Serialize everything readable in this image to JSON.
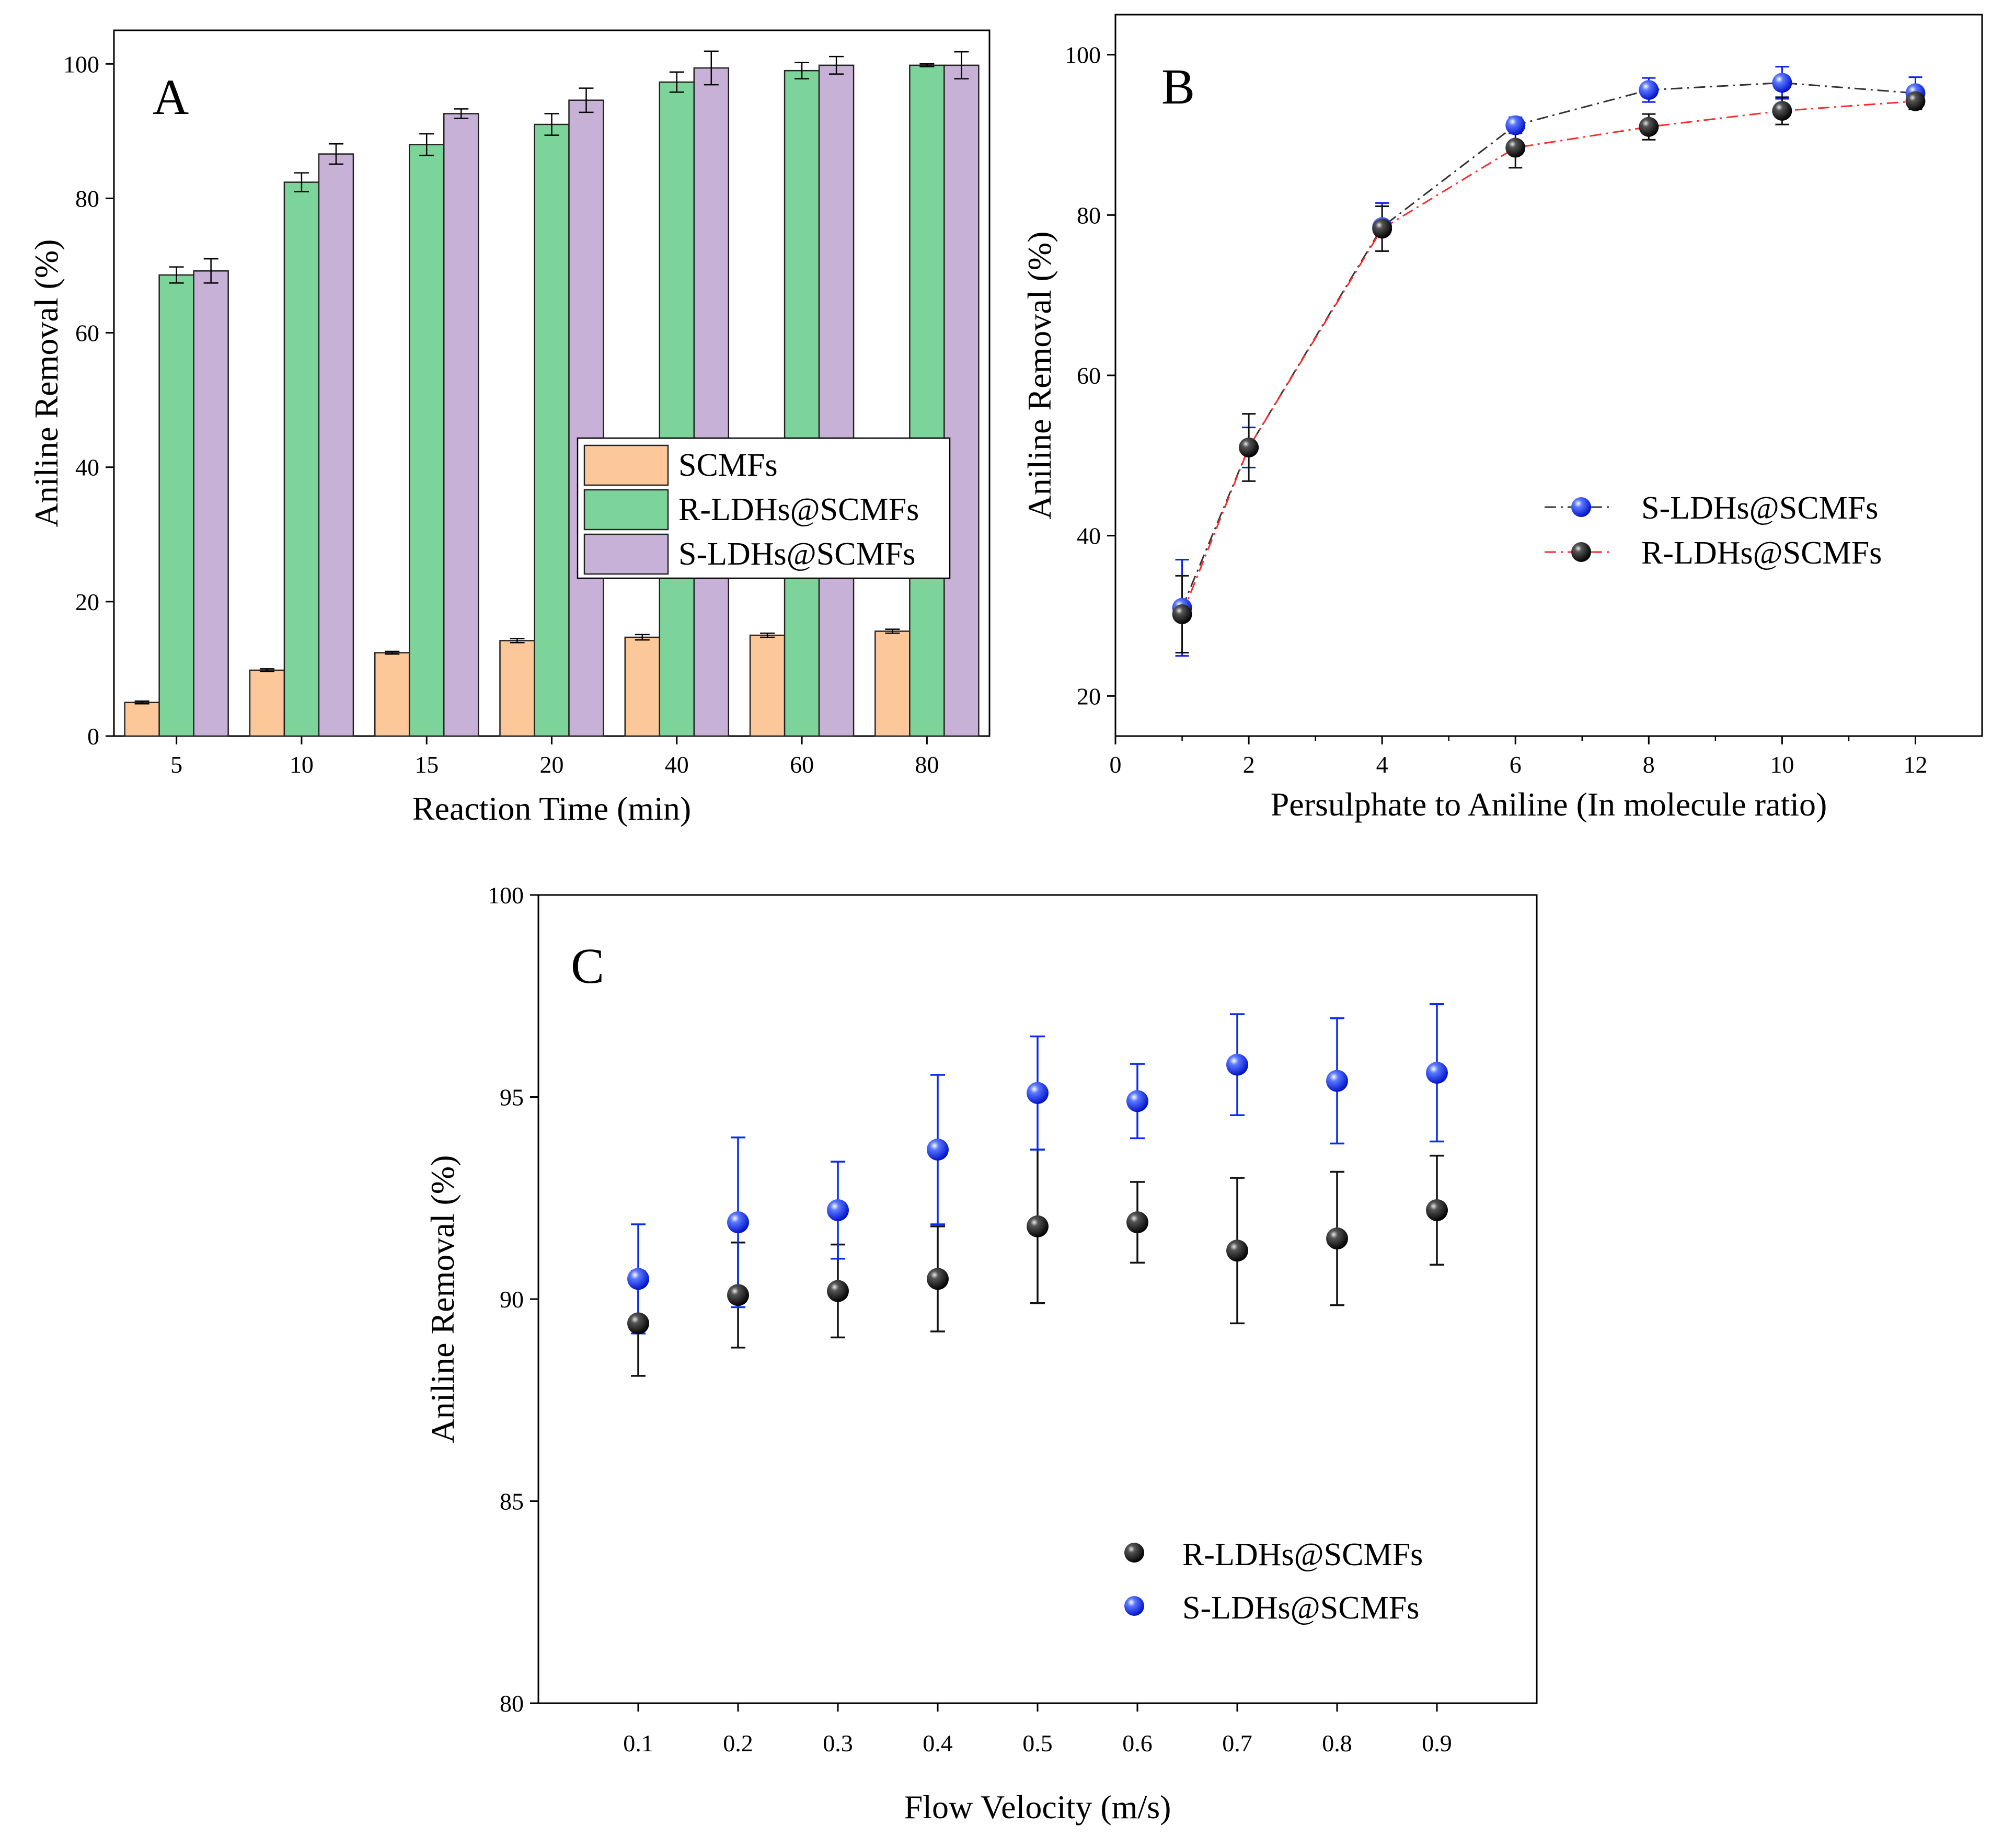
{
  "chart_data": [
    {
      "panel": "A",
      "type": "bar",
      "panel_label": "A",
      "xlabel": "Reaction Time (min)",
      "ylabel": "Aniline Removal (%)",
      "ylim": [
        0,
        105
      ],
      "yticks": [
        0,
        20,
        40,
        60,
        80,
        100
      ],
      "categories": [
        "5",
        "10",
        "15",
        "20",
        "40",
        "60",
        "80"
      ],
      "legend_position": "center-right",
      "series": [
        {
          "name": "SCMFs",
          "color": "#fcc89a",
          "values": [
            5.0,
            9.8,
            12.4,
            14.2,
            14.7,
            15.0,
            15.6
          ],
          "errors": [
            0.2,
            0.2,
            0.2,
            0.3,
            0.4,
            0.3,
            0.3
          ]
        },
        {
          "name": "R-LDHs@SCMFs",
          "color": "#7dd49a",
          "values": [
            68.6,
            82.4,
            88.0,
            91.0,
            97.3,
            99.0,
            99.8
          ],
          "errors": [
            1.2,
            1.4,
            1.6,
            1.6,
            1.5,
            1.2,
            0.2
          ]
        },
        {
          "name": "S-LDHs@SCMFs",
          "color": "#c8b1d6",
          "values": [
            69.2,
            86.6,
            92.6,
            94.6,
            99.4,
            99.8,
            99.8
          ],
          "errors": [
            1.8,
            1.5,
            0.7,
            1.8,
            2.5,
            1.3,
            2.0
          ]
        }
      ]
    },
    {
      "panel": "B",
      "type": "line",
      "panel_label": "B",
      "xlabel": "Persulphate to Aniline (In molecule ratio)",
      "ylabel": "Aniline Removal (%)",
      "xlim": [
        0,
        13
      ],
      "ylim": [
        15,
        105
      ],
      "xticks": [
        0,
        2,
        4,
        6,
        8,
        10,
        12
      ],
      "yticks": [
        20,
        40,
        60,
        80,
        100
      ],
      "legend_position": "center-right",
      "x": [
        1,
        2,
        4,
        6,
        8,
        10,
        12
      ],
      "series": [
        {
          "name": "S-LDHs@SCMFs",
          "color": "#0a1ef0",
          "line_color": "#333333",
          "values": [
            31.0,
            51.0,
            78.5,
            91.2,
            95.6,
            96.5,
            95.2
          ],
          "errors": [
            6.0,
            2.5,
            3.0,
            1.0,
            1.5,
            2.0,
            2.0
          ]
        },
        {
          "name": "R-LDHs@SCMFs",
          "color": "#111111",
          "line_color": "#ff2a2a",
          "values": [
            30.2,
            51.0,
            78.3,
            88.4,
            91.0,
            93.0,
            94.2
          ],
          "errors": [
            4.8,
            4.2,
            2.8,
            2.5,
            1.6,
            1.7,
            1.0
          ]
        }
      ]
    },
    {
      "panel": "C",
      "type": "scatter",
      "panel_label": "C",
      "xlabel": "Flow Velocity (m/s)",
      "ylabel": "Aniline Removal (%)",
      "xlim": [
        0.0,
        1.0
      ],
      "ylim": [
        80,
        100
      ],
      "xticks": [
        0.1,
        0.2,
        0.3,
        0.4,
        0.5,
        0.6,
        0.7,
        0.8,
        0.9
      ],
      "yticks": [
        80,
        85,
        90,
        95,
        100
      ],
      "legend_position": "bottom-right",
      "x": [
        0.1,
        0.2,
        0.3,
        0.4,
        0.5,
        0.6,
        0.7,
        0.8,
        0.9
      ],
      "series": [
        {
          "name": "R-LDHs@SCMFs",
          "color": "#111111",
          "values": [
            89.4,
            90.1,
            90.2,
            90.5,
            91.8,
            91.9,
            91.2,
            91.5,
            92.2
          ],
          "errors": [
            1.3,
            1.3,
            1.15,
            1.3,
            1.9,
            1.0,
            1.8,
            1.65,
            1.35
          ]
        },
        {
          "name": "S-LDHs@SCMFs",
          "color": "#0a2cf0",
          "values": [
            90.5,
            91.9,
            92.2,
            93.7,
            95.1,
            94.9,
            95.8,
            95.4,
            95.6
          ],
          "errors": [
            1.35,
            2.1,
            1.2,
            1.85,
            1.4,
            0.92,
            1.25,
            1.55,
            1.7
          ]
        }
      ]
    }
  ]
}
